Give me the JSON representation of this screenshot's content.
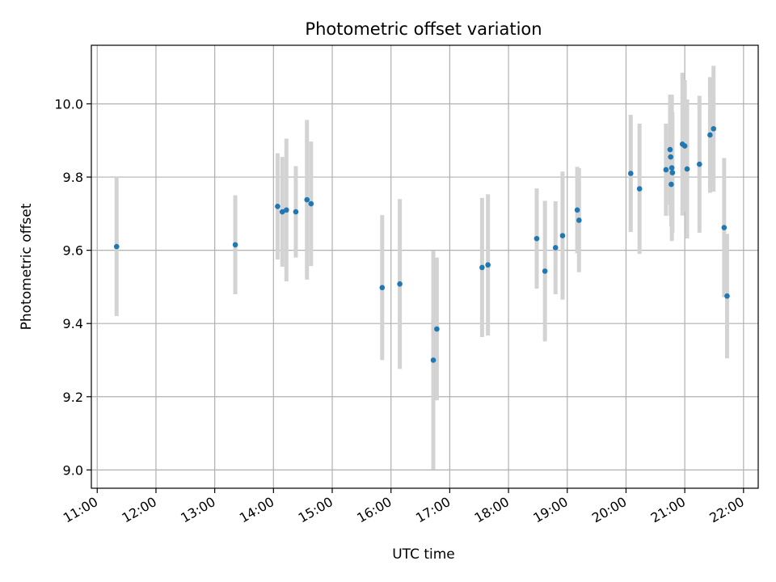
{
  "chart_data": {
    "type": "scatter",
    "title": "Photometric offset variation",
    "xlabel": "UTC time",
    "ylabel": "Photometric offset",
    "x_unit": "hours UTC",
    "xlim": [
      10.9,
      22.25
    ],
    "ylim": [
      8.95,
      10.16
    ],
    "x_ticks": [
      {
        "value": 11,
        "label": "11:00"
      },
      {
        "value": 12,
        "label": "12:00"
      },
      {
        "value": 13,
        "label": "13:00"
      },
      {
        "value": 14,
        "label": "14:00"
      },
      {
        "value": 15,
        "label": "15:00"
      },
      {
        "value": 16,
        "label": "16:00"
      },
      {
        "value": 17,
        "label": "17:00"
      },
      {
        "value": 18,
        "label": "18:00"
      },
      {
        "value": 19,
        "label": "19:00"
      },
      {
        "value": 20,
        "label": "20:00"
      },
      {
        "value": 21,
        "label": "21:00"
      },
      {
        "value": 22,
        "label": "22:00"
      }
    ],
    "y_ticks": [
      {
        "value": 9.0,
        "label": "9.0"
      },
      {
        "value": 9.2,
        "label": "9.2"
      },
      {
        "value": 9.4,
        "label": "9.4"
      },
      {
        "value": 9.6,
        "label": "9.6"
      },
      {
        "value": 9.8,
        "label": "9.8"
      },
      {
        "value": 10.0,
        "label": "10.0"
      }
    ],
    "grid": true,
    "colors": {
      "point": "#1f77b4",
      "errorbar": "#d3d3d3",
      "grid": "#b0b0b0"
    },
    "points": [
      {
        "x": 11.33,
        "y": 9.61,
        "err": 0.19
      },
      {
        "x": 13.35,
        "y": 9.615,
        "err": 0.135
      },
      {
        "x": 14.07,
        "y": 9.72,
        "err": 0.145
      },
      {
        "x": 14.15,
        "y": 9.705,
        "err": 0.15
      },
      {
        "x": 14.22,
        "y": 9.71,
        "err": 0.195
      },
      {
        "x": 14.38,
        "y": 9.705,
        "err": 0.125
      },
      {
        "x": 14.57,
        "y": 9.738,
        "err": 0.218
      },
      {
        "x": 14.64,
        "y": 9.727,
        "err": 0.17
      },
      {
        "x": 15.85,
        "y": 9.498,
        "err": 0.198
      },
      {
        "x": 16.15,
        "y": 9.508,
        "err": 0.232
      },
      {
        "x": 16.72,
        "y": 9.3,
        "err": 0.298
      },
      {
        "x": 16.78,
        "y": 9.385,
        "err": 0.195
      },
      {
        "x": 17.55,
        "y": 9.553,
        "err": 0.19
      },
      {
        "x": 17.65,
        "y": 9.56,
        "err": 0.193
      },
      {
        "x": 18.48,
        "y": 9.632,
        "err": 0.137
      },
      {
        "x": 18.62,
        "y": 9.543,
        "err": 0.192
      },
      {
        "x": 18.8,
        "y": 9.607,
        "err": 0.127
      },
      {
        "x": 18.92,
        "y": 9.64,
        "err": 0.175
      },
      {
        "x": 19.17,
        "y": 9.71,
        "err": 0.118
      },
      {
        "x": 19.2,
        "y": 9.682,
        "err": 0.142
      },
      {
        "x": 20.08,
        "y": 9.81,
        "err": 0.16
      },
      {
        "x": 20.23,
        "y": 9.768,
        "err": 0.178
      },
      {
        "x": 20.68,
        "y": 9.82,
        "err": 0.126
      },
      {
        "x": 20.75,
        "y": 9.875,
        "err": 0.15
      },
      {
        "x": 20.76,
        "y": 9.855,
        "err": 0.16
      },
      {
        "x": 20.77,
        "y": 9.78,
        "err": 0.115
      },
      {
        "x": 20.78,
        "y": 9.825,
        "err": 0.2
      },
      {
        "x": 20.79,
        "y": 9.812,
        "err": 0.165
      },
      {
        "x": 20.96,
        "y": 9.89,
        "err": 0.195
      },
      {
        "x": 21.0,
        "y": 9.885,
        "err": 0.18
      },
      {
        "x": 21.04,
        "y": 9.822,
        "err": 0.19
      },
      {
        "x": 21.25,
        "y": 9.835,
        "err": 0.187
      },
      {
        "x": 21.43,
        "y": 9.915,
        "err": 0.158
      },
      {
        "x": 21.49,
        "y": 9.932,
        "err": 0.172
      },
      {
        "x": 21.67,
        "y": 9.662,
        "err": 0.19
      },
      {
        "x": 21.72,
        "y": 9.475,
        "err": 0.17
      }
    ]
  }
}
